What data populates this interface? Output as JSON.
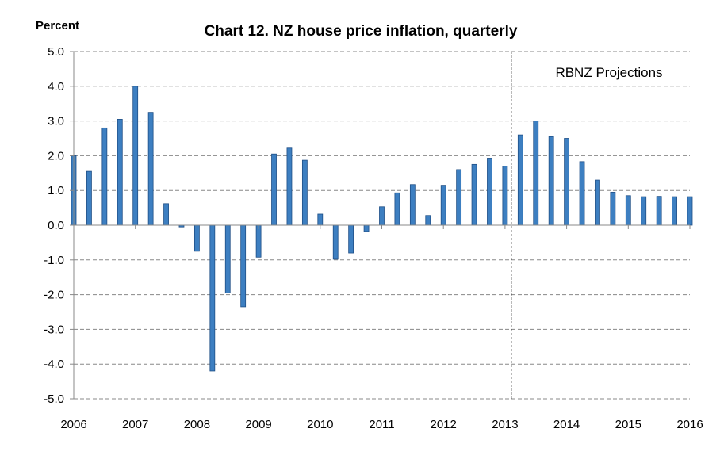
{
  "chart_data": {
    "type": "bar",
    "title": "Chart 12. NZ house price inflation, quarterly",
    "ylabel": "Percent",
    "xlabel": "",
    "ylim": [
      -5,
      5
    ],
    "yticks": [
      "5.0",
      "4.0",
      "3.0",
      "2.0",
      "1.0",
      "0.0",
      "-1.0",
      "-2.0",
      "-3.0",
      "-4.0",
      "-5.0"
    ],
    "xticks": [
      "2006",
      "2007",
      "2008",
      "2009",
      "2010",
      "2011",
      "2012",
      "2013",
      "2014",
      "2015",
      "2016"
    ],
    "grid": true,
    "bar_color": "#3d7fc1",
    "bar_edge_color": "#1f4f86",
    "projection_start_year": 2013.1,
    "annotation": "RBNZ Projections",
    "x": [
      2006.0,
      2006.25,
      2006.5,
      2006.75,
      2007.0,
      2007.25,
      2007.5,
      2007.75,
      2008.0,
      2008.25,
      2008.5,
      2008.75,
      2009.0,
      2009.25,
      2009.5,
      2009.75,
      2010.0,
      2010.25,
      2010.5,
      2010.75,
      2011.0,
      2011.25,
      2011.5,
      2011.75,
      2012.0,
      2012.25,
      2012.5,
      2012.75,
      2013.0,
      2013.25,
      2013.5,
      2013.75,
      2014.0,
      2014.25,
      2014.5,
      2014.75,
      2015.0,
      2015.25,
      2015.5,
      2015.75,
      2016.0
    ],
    "values": [
      2.0,
      1.55,
      2.8,
      3.05,
      4.0,
      3.25,
      0.62,
      -0.05,
      -0.75,
      -4.2,
      -1.95,
      -2.35,
      -0.92,
      2.05,
      2.22,
      1.87,
      0.32,
      -0.98,
      -0.8,
      -0.18,
      0.53,
      0.93,
      1.17,
      0.28,
      1.15,
      1.6,
      1.75,
      1.93,
      1.7,
      2.6,
      3.0,
      2.55,
      2.5,
      1.83,
      1.3,
      0.95,
      0.85,
      0.82,
      0.83,
      0.82,
      0.82
    ]
  }
}
